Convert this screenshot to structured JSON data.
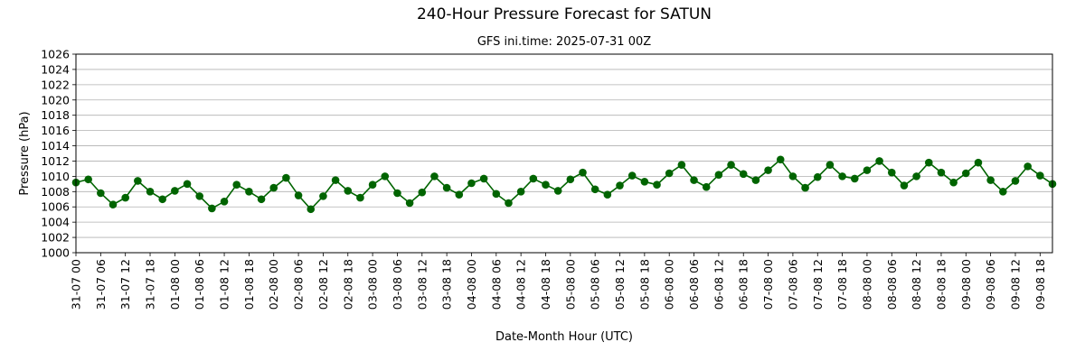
{
  "chart_data": {
    "type": "line",
    "title": "240-Hour Pressure Forecast for SATUN",
    "subtitle": "GFS ini.time: 2025-07-31 00Z",
    "xlabel": "Date-Month Hour (UTC)",
    "ylabel": "Pressure (hPa)",
    "ylim": [
      1000,
      1026
    ],
    "y_ticks": [
      1000,
      1002,
      1004,
      1006,
      1008,
      1010,
      1012,
      1014,
      1016,
      1018,
      1020,
      1022,
      1024,
      1026
    ],
    "grid": "horizontal",
    "x_step_hours": 3,
    "x_tick_labels": [
      "31-07 00",
      "31-07 06",
      "31-07 12",
      "31-07 18",
      "01-08 00",
      "01-08 06",
      "01-08 12",
      "01-08 18",
      "02-08 00",
      "02-08 06",
      "02-08 12",
      "02-08 18",
      "03-08 00",
      "03-08 06",
      "03-08 12",
      "03-08 18",
      "04-08 00",
      "04-08 06",
      "04-08 12",
      "04-08 18",
      "05-08 00",
      "05-08 06",
      "05-08 12",
      "05-08 18",
      "06-08 00",
      "06-08 06",
      "06-08 12",
      "06-08 18",
      "07-08 00",
      "07-08 06",
      "07-08 12",
      "07-08 18",
      "08-08 00",
      "08-08 06",
      "08-08 12",
      "08-08 18",
      "09-08 00",
      "09-08 06",
      "09-08 12",
      "09-08 18"
    ],
    "series": [
      {
        "color": "#006400",
        "values": [
          1009.2,
          1009.6,
          1007.8,
          1006.3,
          1007.2,
          1009.4,
          1008.0,
          1007.0,
          1008.1,
          1009.0,
          1007.4,
          1005.8,
          1006.7,
          1008.9,
          1008.0,
          1007.0,
          1008.5,
          1009.8,
          1007.5,
          1005.7,
          1007.4,
          1009.5,
          1008.1,
          1007.2,
          1008.9,
          1010.0,
          1007.8,
          1006.5,
          1007.9,
          1010.0,
          1008.5,
          1007.6,
          1009.1,
          1009.7,
          1007.7,
          1006.5,
          1008.0,
          1009.7,
          1008.9,
          1008.1,
          1009.6,
          1010.5,
          1008.3,
          1007.6,
          1008.8,
          1010.1,
          1009.3,
          1008.9,
          1010.4,
          1011.5,
          1009.5,
          1008.6,
          1010.2,
          1011.5,
          1010.3,
          1009.5,
          1010.8,
          1012.2,
          1010.0,
          1008.5,
          1009.9,
          1011.5,
          1010.0,
          1009.7,
          1010.8,
          1012.0,
          1010.5,
          1008.8,
          1010.0,
          1011.8,
          1010.5,
          1009.2,
          1010.4,
          1011.8,
          1009.5,
          1008.0,
          1009.4,
          1011.3,
          1010.1,
          1009.0
        ]
      }
    ]
  }
}
